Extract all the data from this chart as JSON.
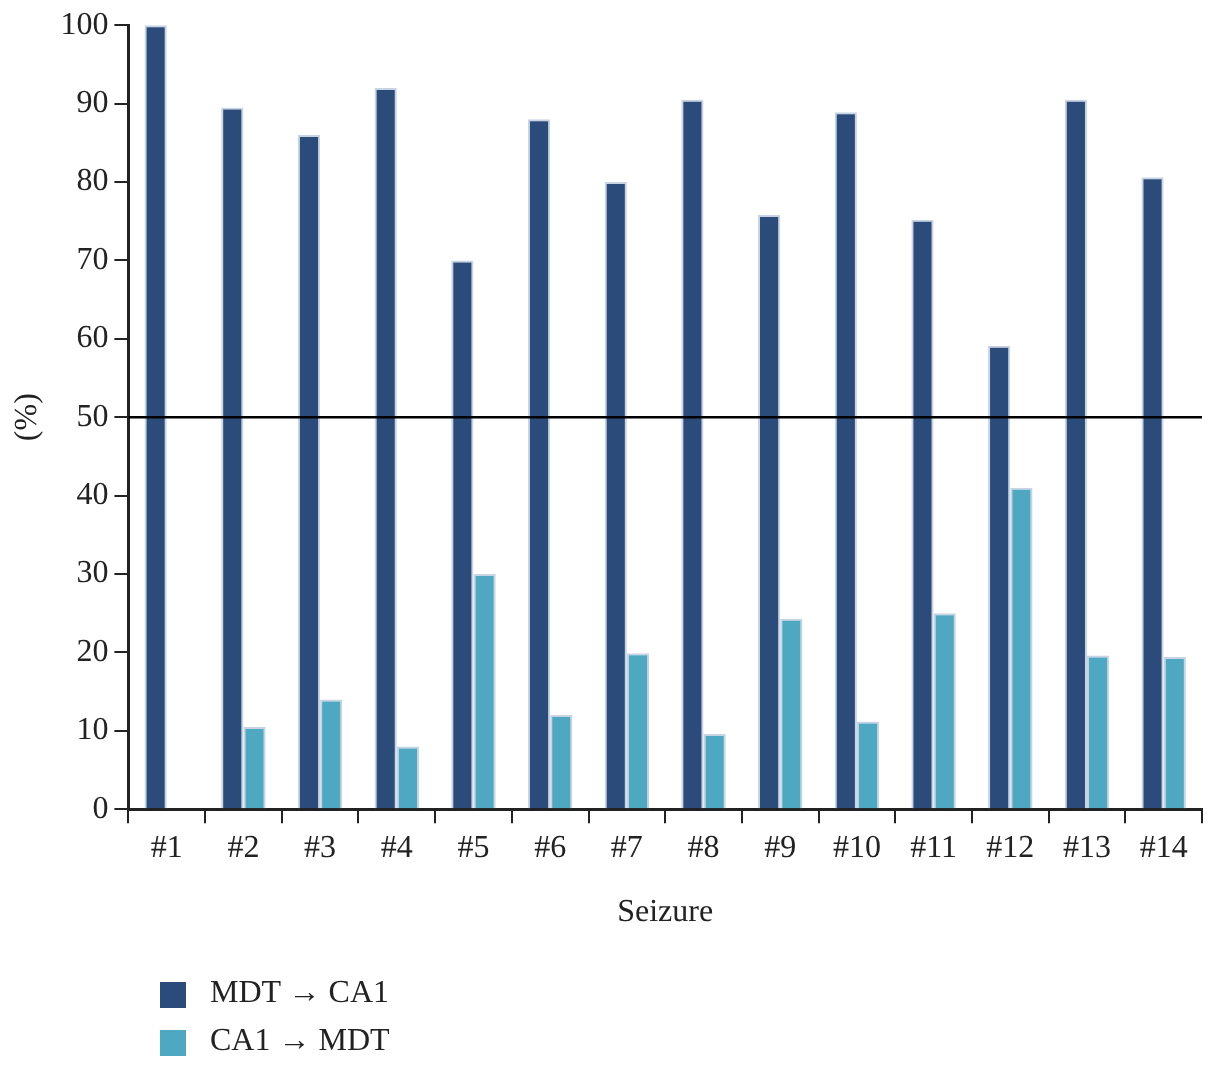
{
  "chart_data": {
    "type": "bar",
    "xlabel": "Seizure",
    "ylabel": "(%)",
    "categories": [
      "#1",
      "#2",
      "#3",
      "#4",
      "#5",
      "#6",
      "#7",
      "#8",
      "#9",
      "#10",
      "#11",
      "#12",
      "#13",
      "#14"
    ],
    "series": [
      {
        "name": "MDT → CA1",
        "color": "#2b4b7a",
        "values": [
          100,
          89.5,
          86,
          92,
          70,
          88,
          80,
          90.5,
          75.8,
          88.9,
          75.2,
          59.1,
          90.5,
          80.6
        ]
      },
      {
        "name": "CA1 → MDT",
        "color": "#4fa8c1",
        "values": [
          0,
          10.5,
          14,
          8,
          30,
          12,
          19.9,
          9.6,
          24.3,
          11.2,
          25,
          41,
          19.6,
          19.4
        ]
      }
    ],
    "ylim": [
      0,
      100
    ],
    "yticks": [
      0,
      10,
      20,
      30,
      40,
      50,
      60,
      70,
      80,
      90,
      100
    ],
    "grid": false,
    "legend": "bottom left",
    "ref_lines": [
      {
        "axis": "y",
        "value": 50,
        "color": "#000000"
      }
    ]
  }
}
